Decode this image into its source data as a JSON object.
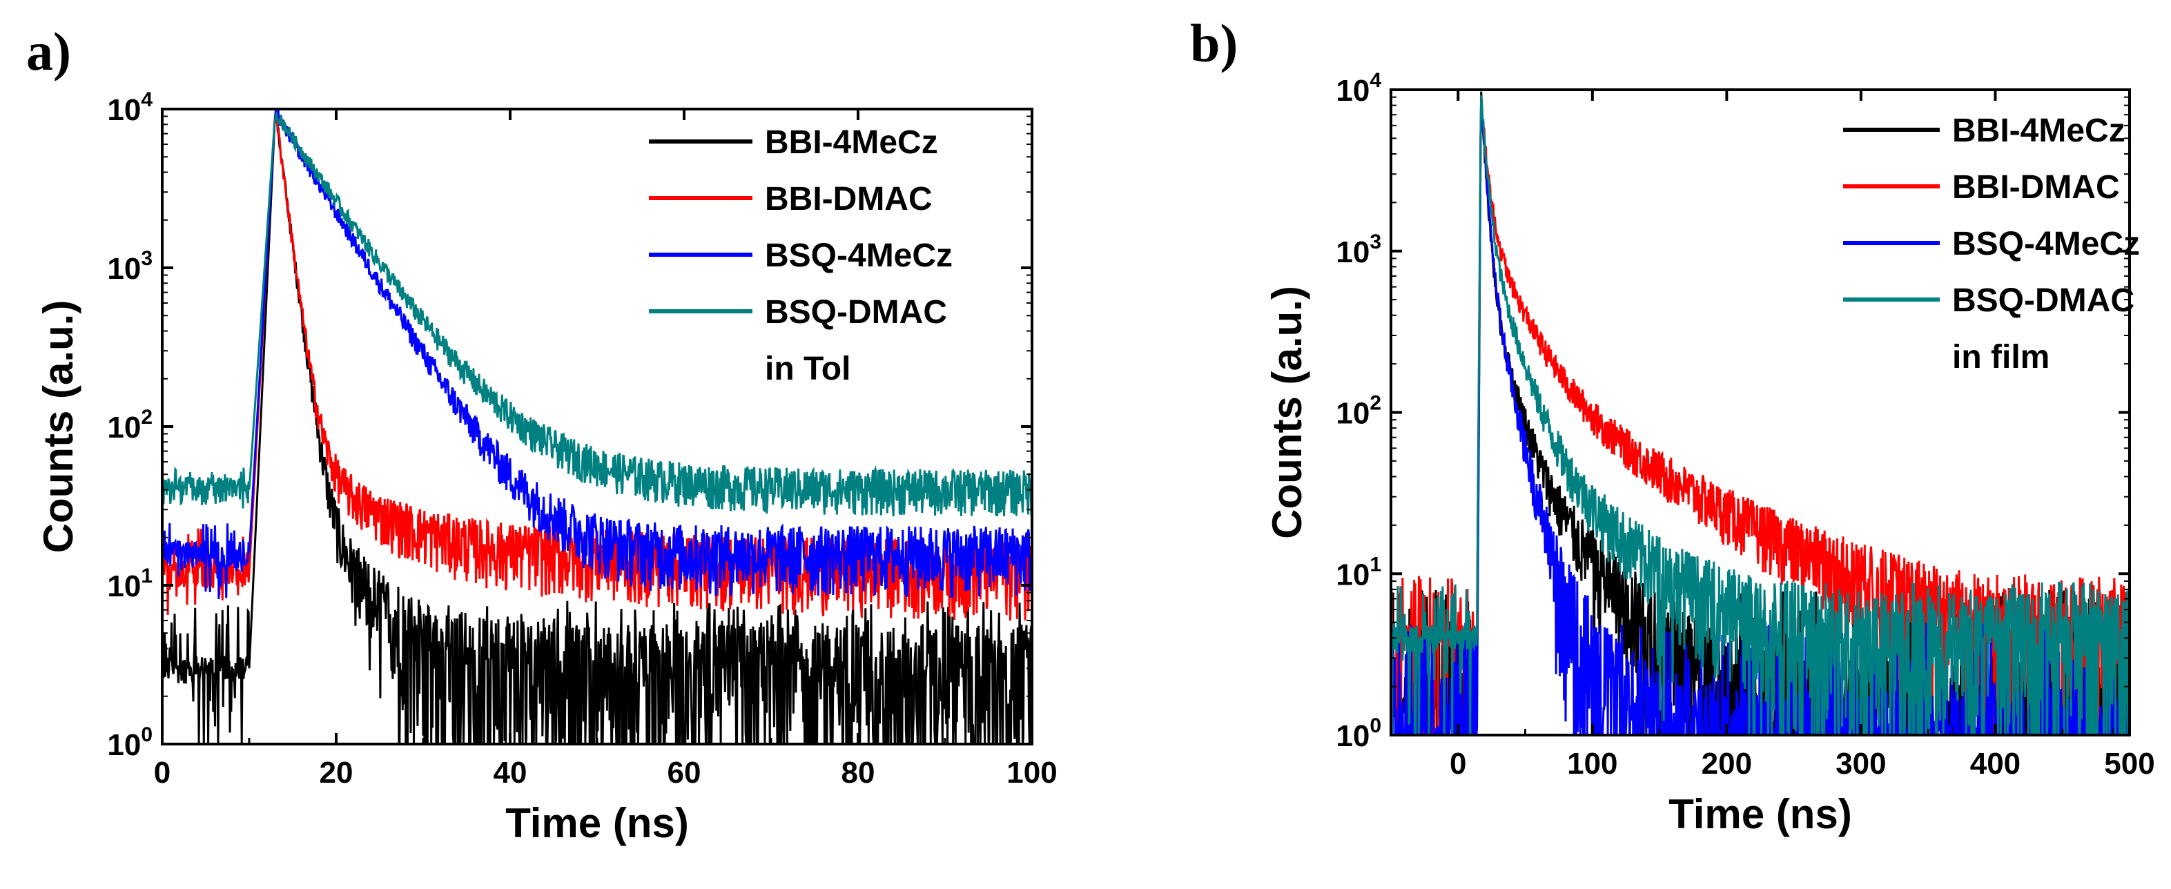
{
  "chart_data": [
    {
      "panel_label": "a)",
      "type": "line",
      "title": "",
      "xlabel": "Time (ns)",
      "ylabel": "Counts (a.u.)",
      "xlim": [
        0,
        100
      ],
      "ylim": [
        1,
        10000
      ],
      "yscale": "log",
      "xticks": [
        0,
        20,
        40,
        60,
        80,
        100
      ],
      "yticks": [
        1,
        10,
        100,
        1000,
        10000
      ],
      "ytick_labels": [
        [
          "10",
          "0"
        ],
        [
          "10",
          "1"
        ],
        [
          "10",
          "2"
        ],
        [
          "10",
          "3"
        ],
        [
          "10",
          "4"
        ]
      ],
      "legend_placement": "top-right",
      "annotation": "in Tol",
      "series": [
        {
          "name": "BBI-4MeCz",
          "color": "#000000",
          "baseline": 3,
          "peak_time": 13,
          "peak": 10000,
          "decay_components": [
            [
              9950,
              1.0
            ],
            [
              50,
              5.0
            ]
          ],
          "noise_low": 1,
          "noise_high": 8
        },
        {
          "name": "BBI-DMAC",
          "color": "#ff0000",
          "baseline": 12,
          "peak_time": 13,
          "peak": 10000,
          "decay_components": [
            [
              9900,
              1.0
            ],
            [
              70,
              6.0
            ],
            [
              10,
              30
            ]
          ],
          "noise_low": 5,
          "noise_high": 25
        },
        {
          "name": "BSQ-4MeCz",
          "color": "#0000ff",
          "baseline": 16,
          "peak_time": 13,
          "peak": 9500,
          "decay_components": [
            [
              9500,
              4.8
            ]
          ],
          "noise_low": 8,
          "noise_high": 25
        },
        {
          "name": "BSQ-DMAC",
          "color": "#008080",
          "baseline": 40,
          "peak_time": 13,
          "peak": 9500,
          "decay_components": [
            [
              9300,
              5.3
            ],
            [
              200,
              12
            ]
          ],
          "noise_low": 28,
          "noise_high": 55
        }
      ]
    },
    {
      "panel_label": "b)",
      "type": "line",
      "title": "",
      "xlabel": "Time (ns)",
      "ylabel": "Counts (a.u.)",
      "xlim": [
        -50,
        500
      ],
      "ylim": [
        1,
        10000
      ],
      "yscale": "log",
      "xticks": [
        0,
        100,
        200,
        300,
        400,
        500
      ],
      "yticks": [
        1,
        10,
        100,
        1000,
        10000
      ],
      "ytick_labels": [
        [
          "10",
          "0"
        ],
        [
          "10",
          "1"
        ],
        [
          "10",
          "2"
        ],
        [
          "10",
          "3"
        ],
        [
          "10",
          "4"
        ]
      ],
      "legend_placement": "top-right",
      "annotation": "in film",
      "series": [
        {
          "name": "BBI-4MeCz",
          "color": "#000000",
          "baseline": 1.5,
          "peak_time": 17,
          "peak": 9500,
          "decay_components": [
            [
              8500,
              3.0
            ],
            [
              800,
              12
            ],
            [
              80,
              40
            ]
          ],
          "noise_low": 1,
          "noise_high": 8
        },
        {
          "name": "BBI-DMAC",
          "color": "#ff0000",
          "baseline": 4,
          "peak_time": 17,
          "peak": 9500,
          "decay_components": [
            [
              7000,
              4.0
            ],
            [
              1400,
              20
            ],
            [
              200,
              80
            ]
          ],
          "noise_low": 1,
          "noise_high": 10
        },
        {
          "name": "BSQ-4MeCz",
          "color": "#0000ff",
          "baseline": 1,
          "peak_time": 17,
          "peak": 9500,
          "decay_components": [
            [
              8000,
              3.0
            ],
            [
              1200,
              10
            ],
            [
              60,
              25
            ]
          ],
          "noise_low": 1,
          "noise_high": 5
        },
        {
          "name": "BSQ-DMAC",
          "color": "#008080",
          "baseline": 4,
          "peak_time": 17,
          "peak": 9500,
          "decay_components": [
            [
              7500,
              3.5
            ],
            [
              1500,
              14
            ],
            [
              100,
              50
            ]
          ],
          "noise_low": 1,
          "noise_high": 9
        }
      ]
    }
  ]
}
